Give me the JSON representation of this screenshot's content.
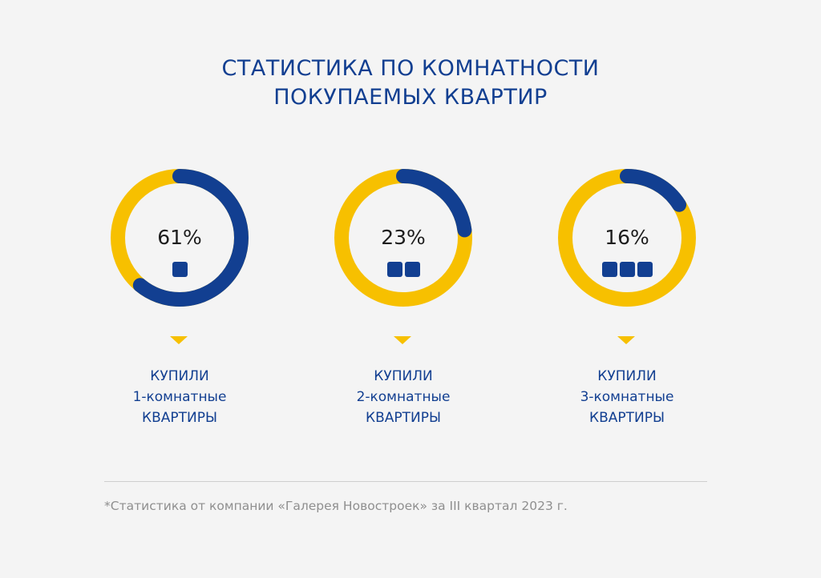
{
  "title": {
    "line1": "СТАТИСТИКА ПО КОМНАТНОСТИ",
    "line2": "ПОКУПАЕМЫХ КВАРТИР"
  },
  "colors": {
    "primary": "#123f91",
    "accent": "#f7c000",
    "background": "#f4f4f4",
    "footnote": "#8f8f8f"
  },
  "chart_data": {
    "type": "pie",
    "style": "donut",
    "series": [
      {
        "label": "61%",
        "value": 61,
        "rooms": 1,
        "caption": [
          "КУПИЛИ",
          "1-комнатные",
          "КВАРТИРЫ"
        ]
      },
      {
        "label": "23%",
        "value": 23,
        "rooms": 2,
        "caption": [
          "КУПИЛИ",
          "2-комнатные",
          "КВАРТИРЫ"
        ]
      },
      {
        "label": "16%",
        "value": 16,
        "rooms": 3,
        "caption": [
          "КУПИЛИ",
          "3-комнатные",
          "КВАРТИРЫ"
        ]
      }
    ]
  },
  "footnote": "*Статистика от компании «Галерея Новостроек» за III квартал 2023 г."
}
